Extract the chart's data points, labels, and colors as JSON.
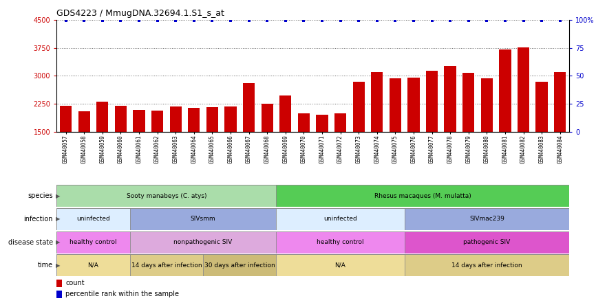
{
  "title": "GDS4223 / MmugDNA.32694.1.S1_s_at",
  "samples": [
    "GSM440057",
    "GSM440058",
    "GSM440059",
    "GSM440060",
    "GSM440061",
    "GSM440062",
    "GSM440063",
    "GSM440064",
    "GSM440065",
    "GSM440066",
    "GSM440067",
    "GSM440068",
    "GSM440069",
    "GSM440070",
    "GSM440071",
    "GSM440072",
    "GSM440073",
    "GSM440074",
    "GSM440075",
    "GSM440076",
    "GSM440077",
    "GSM440078",
    "GSM440079",
    "GSM440080",
    "GSM440081",
    "GSM440082",
    "GSM440083",
    "GSM440084"
  ],
  "counts": [
    2200,
    2050,
    2300,
    2200,
    2090,
    2070,
    2180,
    2140,
    2160,
    2170,
    2800,
    2250,
    2480,
    1990,
    1960,
    1990,
    2840,
    3090,
    2940,
    2960,
    3140,
    3260,
    3080,
    2940,
    3700,
    3770,
    2840,
    3090
  ],
  "bar_color": "#cc0000",
  "dot_color": "#0000cc",
  "ylim_left": [
    1500,
    4500
  ],
  "yticks_left": [
    1500,
    2250,
    3000,
    3750,
    4500
  ],
  "ylim_right": [
    0,
    100
  ],
  "yticks_right": [
    0,
    25,
    50,
    75,
    100
  ],
  "rows": [
    {
      "label": "species",
      "segments": [
        {
          "text": "Sooty manabeys (C. atys)",
          "start": 0,
          "end": 12,
          "color": "#aaddaa"
        },
        {
          "text": "Rhesus macaques (M. mulatta)",
          "start": 12,
          "end": 28,
          "color": "#55cc55"
        }
      ]
    },
    {
      "label": "infection",
      "segments": [
        {
          "text": "uninfected",
          "start": 0,
          "end": 4,
          "color": "#ddeeff"
        },
        {
          "text": "SIVsmm",
          "start": 4,
          "end": 12,
          "color": "#99aadd"
        },
        {
          "text": "uninfected",
          "start": 12,
          "end": 19,
          "color": "#ddeeff"
        },
        {
          "text": "SIVmac239",
          "start": 19,
          "end": 28,
          "color": "#99aadd"
        }
      ]
    },
    {
      "label": "disease state",
      "segments": [
        {
          "text": "healthy control",
          "start": 0,
          "end": 4,
          "color": "#ee88ee"
        },
        {
          "text": "nonpathogenic SIV",
          "start": 4,
          "end": 12,
          "color": "#ddaadd"
        },
        {
          "text": "healthy control",
          "start": 12,
          "end": 19,
          "color": "#ee88ee"
        },
        {
          "text": "pathogenic SIV",
          "start": 19,
          "end": 28,
          "color": "#dd55cc"
        }
      ]
    },
    {
      "label": "time",
      "segments": [
        {
          "text": "N/A",
          "start": 0,
          "end": 4,
          "color": "#eedd99"
        },
        {
          "text": "14 days after infection",
          "start": 4,
          "end": 8,
          "color": "#ddcc88"
        },
        {
          "text": "30 days after infection",
          "start": 8,
          "end": 12,
          "color": "#ccbb77"
        },
        {
          "text": "N/A",
          "start": 12,
          "end": 19,
          "color": "#eedd99"
        },
        {
          "text": "14 days after infection",
          "start": 19,
          "end": 28,
          "color": "#ddcc88"
        }
      ]
    }
  ]
}
